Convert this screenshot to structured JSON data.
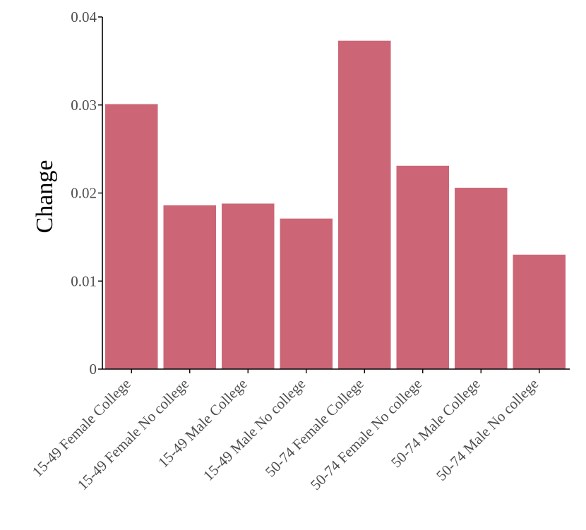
{
  "chart_data": {
    "type": "bar",
    "categories": [
      "15-49 Female College",
      "15-49 Female No college",
      "15-49 Male College",
      "15-49 Male No college",
      "50-74 Female College",
      "50-74 Female No college",
      "50-74 Male College",
      "50-74 Male No college"
    ],
    "values": [
      0.0301,
      0.0186,
      0.0188,
      0.0171,
      0.0373,
      0.0231,
      0.0206,
      0.013
    ],
    "yticks": [
      0,
      0.01,
      0.02,
      0.03,
      0.04
    ],
    "ytick_labels": [
      "0",
      "0.01",
      "0.02",
      "0.03",
      "0.04"
    ],
    "ylim": [
      0,
      0.04
    ],
    "xlabel": "",
    "ylabel": "Change",
    "bar_color": "#cc6677",
    "grid": false,
    "legend": "none"
  }
}
